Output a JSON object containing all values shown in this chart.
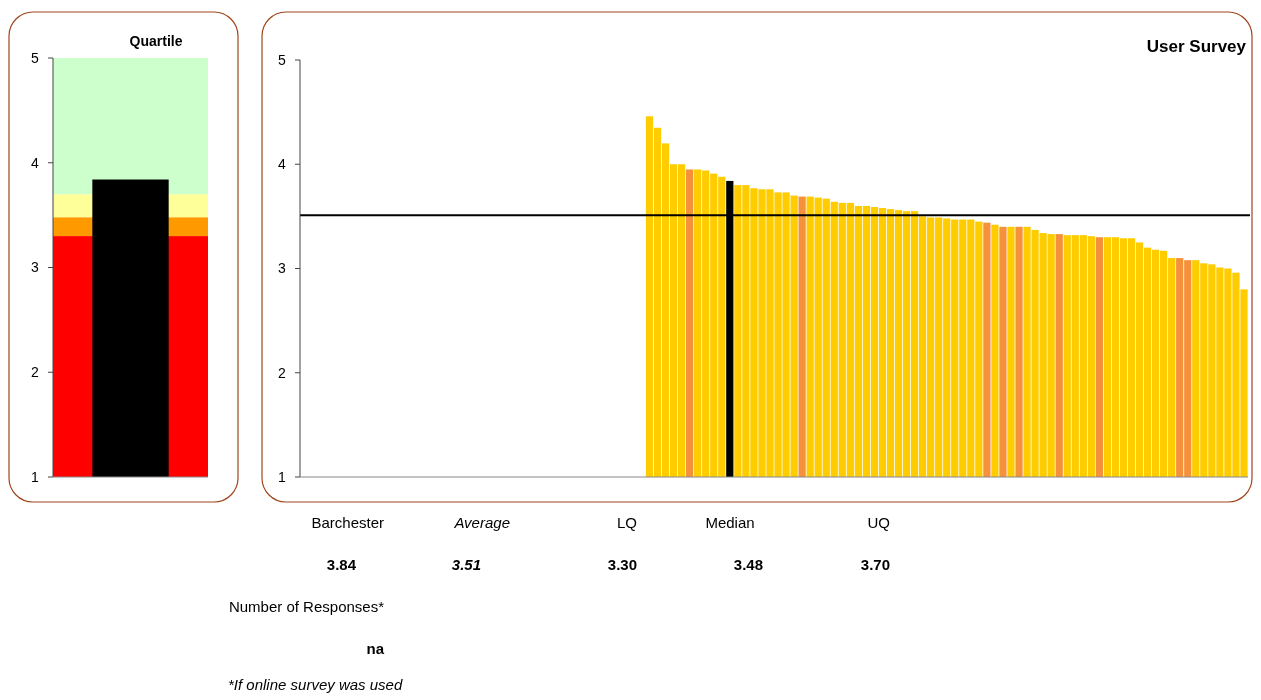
{
  "chart_data": [
    {
      "type": "bar",
      "title": "Quartile",
      "categories": [
        null
      ],
      "values": [
        3.84
      ],
      "colors": [
        "#000000"
      ],
      "ylim": [
        1,
        5
      ],
      "yticks": [
        1,
        2,
        3,
        4,
        5
      ],
      "bands": [
        {
          "axis": "y",
          "from": 1,
          "to": 3.3,
          "color": "#ff0000"
        },
        {
          "axis": "y",
          "from": 3.3,
          "to": 3.48,
          "color": "#ff9900"
        },
        {
          "axis": "y",
          "from": 3.48,
          "to": 3.7,
          "color": "#ffff99"
        },
        {
          "axis": "y",
          "from": 3.7,
          "to": 5,
          "color": "#ccffcc"
        }
      ]
    },
    {
      "type": "bar",
      "title": "User Survey",
      "categories": [
        null,
        null,
        null,
        null,
        null,
        null,
        null,
        null,
        null,
        null,
        null,
        null,
        null,
        null,
        null,
        null,
        null,
        null,
        null,
        null,
        null,
        null,
        null,
        null,
        null,
        null,
        null,
        null,
        null,
        null,
        null,
        null,
        null,
        null,
        null,
        null,
        null,
        null,
        null,
        null,
        null,
        null,
        null,
        null,
        null,
        null,
        null,
        null,
        null,
        null,
        null,
        null,
        null,
        null,
        null,
        null,
        null,
        null,
        null,
        null,
        null,
        null,
        null,
        null,
        null,
        null,
        null,
        null,
        null,
        null,
        null,
        null,
        null,
        null,
        null,
        null,
        null,
        null,
        null,
        null,
        null,
        null,
        null,
        null,
        null,
        null,
        null,
        null,
        null,
        null,
        null,
        null,
        null,
        null,
        null,
        null,
        null,
        null,
        null,
        null,
        null,
        null,
        null,
        null,
        null,
        null,
        null,
        null,
        null,
        null,
        null,
        null,
        null,
        null,
        null,
        null,
        null,
        null
      ],
      "values": [
        null,
        null,
        null,
        null,
        null,
        null,
        null,
        null,
        null,
        null,
        null,
        null,
        null,
        null,
        null,
        null,
        null,
        null,
        null,
        null,
        null,
        null,
        null,
        null,
        null,
        null,
        null,
        null,
        null,
        null,
        null,
        null,
        null,
        null,
        null,
        null,
        null,
        null,
        null,
        null,
        null,
        null,
        null,
        4.46,
        4.35,
        4.2,
        4.0,
        4.0,
        3.95,
        3.95,
        3.94,
        3.91,
        3.88,
        3.84,
        3.8,
        3.8,
        3.77,
        3.76,
        3.76,
        3.73,
        3.73,
        3.7,
        3.69,
        3.69,
        3.68,
        3.67,
        3.64,
        3.63,
        3.63,
        3.6,
        3.6,
        3.59,
        3.58,
        3.57,
        3.56,
        3.55,
        3.55,
        3.5,
        3.49,
        3.49,
        3.48,
        3.47,
        3.47,
        3.47,
        3.45,
        3.44,
        3.42,
        3.4,
        3.4,
        3.4,
        3.4,
        3.37,
        3.34,
        3.33,
        3.33,
        3.32,
        3.32,
        3.32,
        3.31,
        3.3,
        3.3,
        3.3,
        3.29,
        3.29,
        3.25,
        3.2,
        3.18,
        3.17,
        3.1,
        3.1,
        3.08,
        3.08,
        3.05,
        3.04,
        3.01,
        3.0,
        2.96,
        2.8
      ],
      "colors": [
        null,
        null,
        null,
        null,
        null,
        null,
        null,
        null,
        null,
        null,
        null,
        null,
        null,
        null,
        null,
        null,
        null,
        null,
        null,
        null,
        null,
        null,
        null,
        null,
        null,
        null,
        null,
        null,
        null,
        null,
        null,
        null,
        null,
        null,
        null,
        null,
        null,
        null,
        null,
        null,
        null,
        null,
        null,
        "#ffcc00",
        "#ffcc00",
        "#ffcc00",
        "#ffcc00",
        "#ffcc00",
        "#f5913a",
        "#ffcc00",
        "#ffcc00",
        "#ffcc00",
        "#ffcc00",
        "#000000",
        "#ffcc00",
        "#ffcc00",
        "#ffcc00",
        "#ffcc00",
        "#ffcc00",
        "#ffcc00",
        "#ffcc00",
        "#ffcc00",
        "#f5913a",
        "#ffcc00",
        "#ffcc00",
        "#ffcc00",
        "#ffcc00",
        "#ffcc00",
        "#ffcc00",
        "#ffcc00",
        "#ffcc00",
        "#ffcc00",
        "#ffcc00",
        "#ffcc00",
        "#ffcc00",
        "#ffcc00",
        "#ffcc00",
        "#ffcc00",
        "#ffcc00",
        "#ffcc00",
        "#ffcc00",
        "#ffcc00",
        "#ffcc00",
        "#ffcc00",
        "#ffcc00",
        "#f5913a",
        "#ffcc00",
        "#f5913a",
        "#ffcc00",
        "#f5913a",
        "#ffcc00",
        "#ffcc00",
        "#ffcc00",
        "#ffcc00",
        "#f5913a",
        "#ffcc00",
        "#ffcc00",
        "#ffcc00",
        "#ffcc00",
        "#f5913a",
        "#ffcc00",
        "#ffcc00",
        "#ffcc00",
        "#ffcc00",
        "#ffcc00",
        "#ffcc00",
        "#ffcc00",
        "#ffcc00",
        "#ffcc00",
        "#f5913a",
        "#f5913a",
        "#ffcc00",
        "#ffcc00",
        "#ffcc00",
        "#ffcc00",
        "#ffcc00",
        "#ffcc00",
        "#ffcc00"
      ],
      "ylim": [
        1,
        5
      ],
      "yticks": [
        1,
        2,
        3,
        4,
        5
      ],
      "ref_lines": [
        {
          "axis": "y",
          "value": 3.51,
          "color": "#000000"
        }
      ],
      "annotations": [
        "Barchester",
        "Average",
        "LQ",
        "Median",
        "UQ",
        "3.84",
        "3.51",
        "3.30",
        "3.48",
        "3.70",
        "Number of Responses*",
        "na",
        "*If online survey was used"
      ]
    }
  ]
}
